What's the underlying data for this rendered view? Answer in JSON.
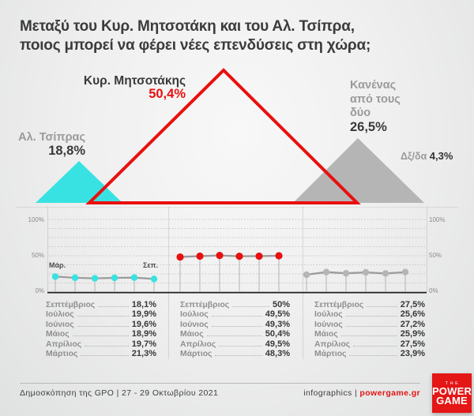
{
  "title": {
    "line1": "Μεταξύ του Κυρ. Μητσοτάκη και του Αλ. Τσίπρα,",
    "line2": "ποιος μπορεί να φέρει νέες επενδύσεις στη χώρα;"
  },
  "colors": {
    "red": "#e8100e",
    "cyan": "#38e2e2",
    "gray": "#b5b5b5",
    "dark": "#3a3a3a",
    "muted": "#9a9a9a"
  },
  "triangles": {
    "tsipras": {
      "name": "Αλ. Τσίπρας",
      "value": "18,8%"
    },
    "mitsotakis": {
      "name": "Κυρ. Μητσοτάκης",
      "value": "50,4%"
    },
    "neither": {
      "line1": "Κανένας",
      "line2": "από τους",
      "line3": "δύο",
      "value": "26,5%"
    },
    "dk": {
      "label": "Δξ/δα",
      "value": "4,3%"
    }
  },
  "axis": {
    "y_ticks": [
      "100%",
      "50%",
      "0%"
    ],
    "x_first": "Μάρ.",
    "x_last": "Σεπ."
  },
  "chart_data": {
    "type": "line",
    "title": "Μεταξύ του Κυρ. Μητσοτάκη και του Αλ. Τσίπρα, ποιος μπορεί να φέρει νέες επενδύσεις στη χώρα;",
    "categories": [
      "Μάρτιος",
      "Απρίλιος",
      "Μάιος",
      "Ιούνιος",
      "Ιούλιος",
      "Σεπτέμβριος"
    ],
    "ylim": [
      0,
      100
    ],
    "y_tick_labels": [
      "0%",
      "50%",
      "100%"
    ],
    "grid": "dotted-horizontal",
    "legend_position": "labels-above-triangles",
    "series": [
      {
        "name": "Αλ. Τσίπρας",
        "color_key": "cyan",
        "values": [
          21.3,
          19.7,
          18.9,
          19.6,
          19.9,
          18.1
        ],
        "headline": 18.8
      },
      {
        "name": "Κυρ. Μητσοτάκης",
        "color_key": "red",
        "values": [
          48.3,
          49.5,
          50.4,
          49.3,
          49.5,
          50
        ],
        "headline": 50.4
      },
      {
        "name": "Κανένας από τους δύο",
        "color_key": "gray",
        "values": [
          23.9,
          27.5,
          25.9,
          27.2,
          25.6,
          27.5
        ],
        "headline": 26.5
      }
    ]
  },
  "tables": {
    "months": [
      "Σεπτέμβριος",
      "Ιούλιος",
      "Ιούνιος",
      "Μάιος",
      "Απρίλιος",
      "Μάρτιος"
    ],
    "values": [
      [
        "18,1%",
        "19,9%",
        "19,6%",
        "18,9%",
        "19,7%",
        "21,3%"
      ],
      [
        "50%",
        "49,5%",
        "49,3%",
        "50,4%",
        "49,5%",
        "48,3%"
      ],
      [
        "27,5%",
        "25,6%",
        "27,2%",
        "25,9%",
        "27,5%",
        "23,9%"
      ]
    ]
  },
  "footer": {
    "source": "Δημοσκόπηση της GPO | 27 - 29 Οκτωβρίου 2021",
    "credits": "infographics | ",
    "site": "powergame.gr",
    "logo": {
      "the": "THE",
      "power": "POWER",
      "game": "GAME"
    }
  }
}
